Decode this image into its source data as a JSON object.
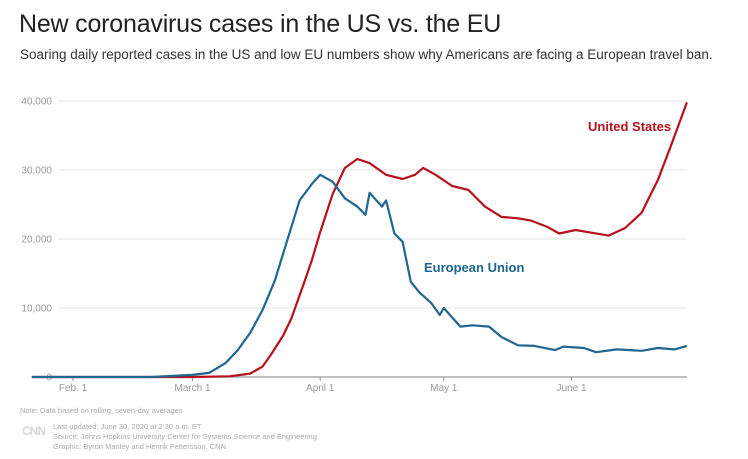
{
  "header": {
    "title": "New coronavirus cases in the US vs. the EU",
    "subtitle": "Soaring daily reported cases in the US and low EU numbers show why Americans are facing a European travel ban."
  },
  "footer": {
    "note": "Note: Data based on rolling, seven-day averages",
    "logo": "CNN",
    "updated": "Last updated: June 30, 2020 at 2:30 a.m. ET",
    "source": "Source: Johns Hopkins University Center for Systems Science and Engineering",
    "graphic": "Graphic: Byron Manley and Henrik Pettersson, CNN"
  },
  "chart_data": {
    "type": "line",
    "title": "New coronavirus cases in the US vs. the EU",
    "xlabel": "",
    "ylabel": "",
    "ylim": [
      0,
      40000
    ],
    "grid": true,
    "yticks": [
      {
        "v": 0,
        "label": "0"
      },
      {
        "v": 10000,
        "label": "10,000"
      },
      {
        "v": 20000,
        "label": "20,000"
      },
      {
        "v": 30000,
        "label": "30,000"
      },
      {
        "v": 40000,
        "label": "40,000"
      }
    ],
    "xticks": [
      {
        "date": "2020-02-01",
        "label": "Feb. 1"
      },
      {
        "date": "2020-03-01",
        "label": "March 1"
      },
      {
        "date": "2020-04-01",
        "label": "April 1"
      },
      {
        "date": "2020-05-01",
        "label": "May 1"
      },
      {
        "date": "2020-06-01",
        "label": "June 1"
      }
    ],
    "xlim": [
      "2020-01-22",
      "2020-06-29"
    ],
    "series": [
      {
        "name": "United States",
        "color": "#b5121b",
        "points": [
          [
            "2020-01-22",
            0
          ],
          [
            "2020-03-01",
            0
          ],
          [
            "2020-03-10",
            100
          ],
          [
            "2020-03-15",
            500
          ],
          [
            "2020-03-18",
            1500
          ],
          [
            "2020-03-20",
            3200
          ],
          [
            "2020-03-23",
            6000
          ],
          [
            "2020-03-25",
            8500
          ],
          [
            "2020-03-28",
            13500
          ],
          [
            "2020-03-30",
            17000
          ],
          [
            "2020-04-01",
            21000
          ],
          [
            "2020-04-04",
            26500
          ],
          [
            "2020-04-07",
            30300
          ],
          [
            "2020-04-10",
            31600
          ],
          [
            "2020-04-13",
            31000
          ],
          [
            "2020-04-17",
            29300
          ],
          [
            "2020-04-21",
            28700
          ],
          [
            "2020-04-24",
            29300
          ],
          [
            "2020-04-26",
            30300
          ],
          [
            "2020-04-29",
            29300
          ],
          [
            "2020-05-03",
            27700
          ],
          [
            "2020-05-07",
            27100
          ],
          [
            "2020-05-11",
            24700
          ],
          [
            "2020-05-15",
            23200
          ],
          [
            "2020-05-19",
            23000
          ],
          [
            "2020-05-22",
            22700
          ],
          [
            "2020-05-26",
            21800
          ],
          [
            "2020-05-29",
            20800
          ],
          [
            "2020-06-02",
            21300
          ],
          [
            "2020-06-06",
            20900
          ],
          [
            "2020-06-10",
            20500
          ],
          [
            "2020-06-14",
            21600
          ],
          [
            "2020-06-18",
            23800
          ],
          [
            "2020-06-22",
            28600
          ],
          [
            "2020-06-25",
            33300
          ],
          [
            "2020-06-29",
            39800
          ]
        ]
      },
      {
        "name": "European Union",
        "color": "#1f6690",
        "points": [
          [
            "2020-01-22",
            0
          ],
          [
            "2020-02-20",
            0
          ],
          [
            "2020-03-01",
            300
          ],
          [
            "2020-03-05",
            600
          ],
          [
            "2020-03-09",
            2000
          ],
          [
            "2020-03-12",
            3900
          ],
          [
            "2020-03-15",
            6400
          ],
          [
            "2020-03-18",
            9700
          ],
          [
            "2020-03-21",
            14000
          ],
          [
            "2020-03-24",
            19800
          ],
          [
            "2020-03-27",
            25600
          ],
          [
            "2020-03-30",
            28000
          ],
          [
            "2020-04-01",
            29300
          ],
          [
            "2020-04-04",
            28300
          ],
          [
            "2020-04-07",
            25900
          ],
          [
            "2020-04-10",
            24700
          ],
          [
            "2020-04-12",
            23500
          ],
          [
            "2020-04-13",
            26700
          ],
          [
            "2020-04-16",
            24700
          ],
          [
            "2020-04-17",
            25600
          ],
          [
            "2020-04-19",
            20800
          ],
          [
            "2020-04-21",
            19600
          ],
          [
            "2020-04-23",
            13800
          ],
          [
            "2020-04-25",
            12300
          ],
          [
            "2020-04-28",
            10700
          ],
          [
            "2020-04-30",
            9000
          ],
          [
            "2020-05-01",
            10000
          ],
          [
            "2020-05-05",
            7300
          ],
          [
            "2020-05-08",
            7500
          ],
          [
            "2020-05-12",
            7300
          ],
          [
            "2020-05-15",
            5800
          ],
          [
            "2020-05-19",
            4600
          ],
          [
            "2020-05-23",
            4500
          ],
          [
            "2020-05-28",
            3900
          ],
          [
            "2020-05-30",
            4400
          ],
          [
            "2020-06-04",
            4200
          ],
          [
            "2020-06-07",
            3600
          ],
          [
            "2020-06-12",
            4000
          ],
          [
            "2020-06-18",
            3800
          ],
          [
            "2020-06-22",
            4200
          ],
          [
            "2020-06-26",
            4000
          ],
          [
            "2020-06-29",
            4500
          ]
        ]
      }
    ]
  }
}
